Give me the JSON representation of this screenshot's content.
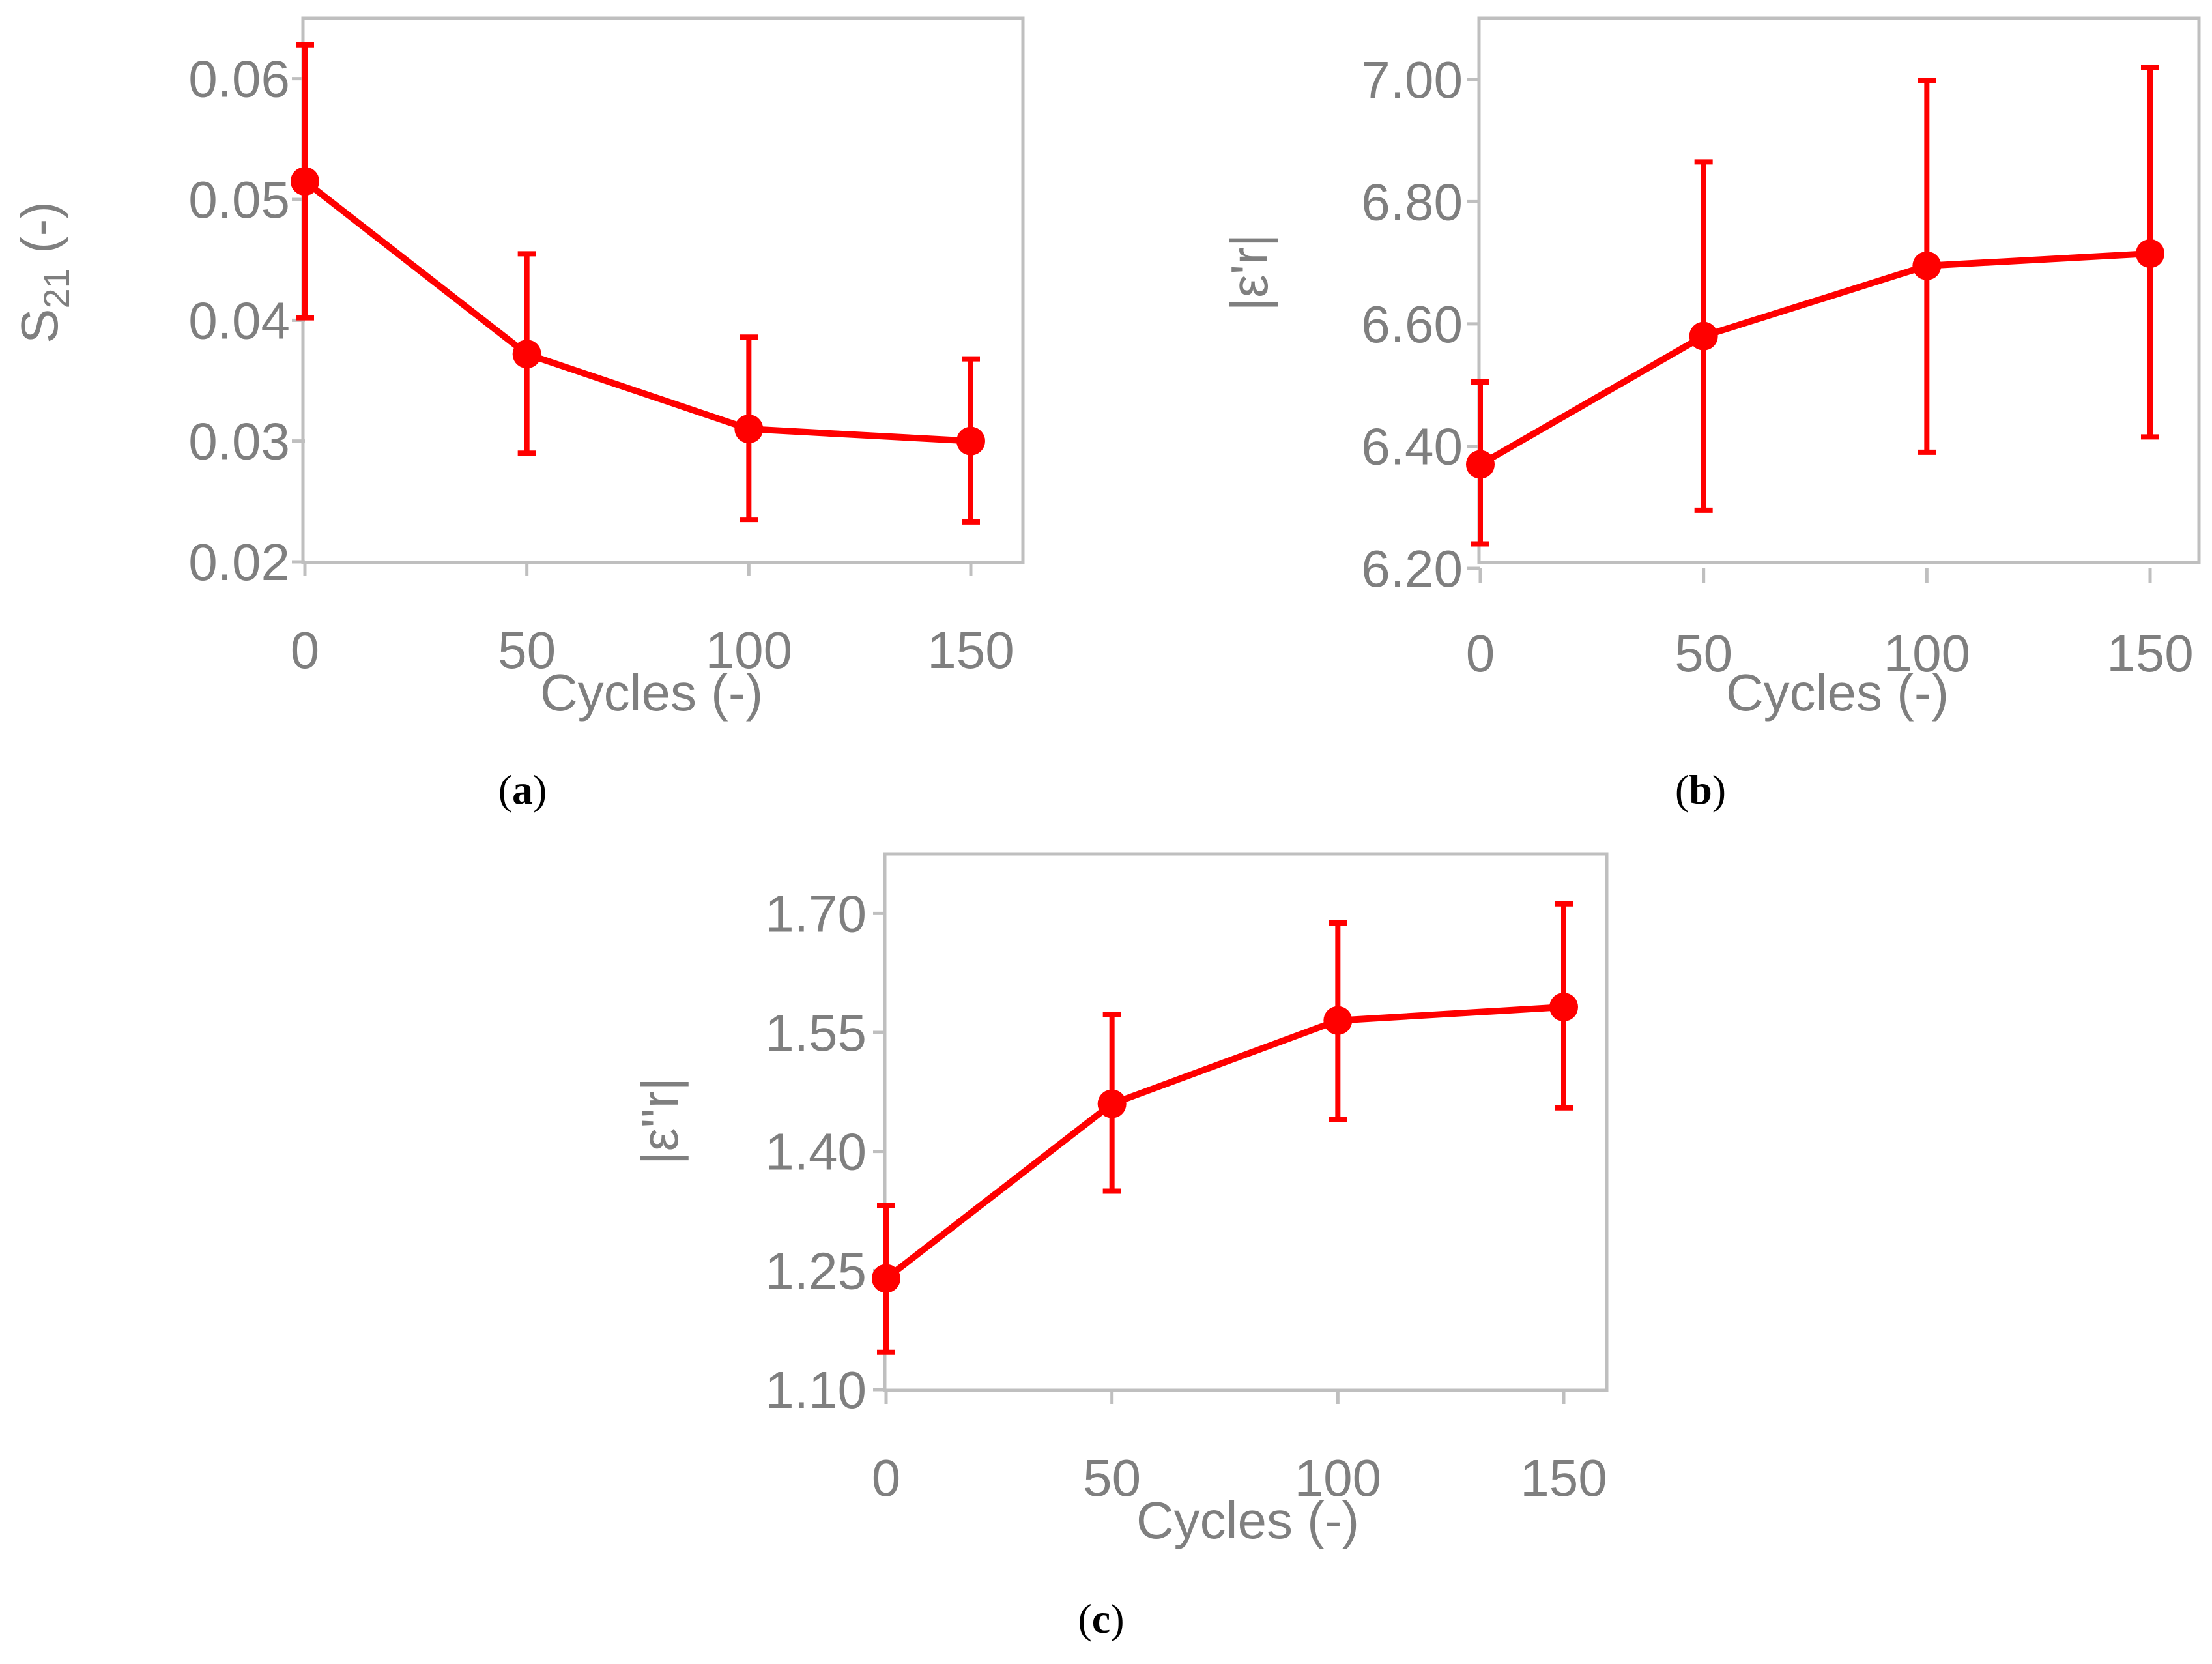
{
  "chart_data": [
    {
      "id": "a",
      "type": "line",
      "panel_label": "a",
      "xlabel": "Cycles (-)",
      "ylabel": "S",
      "ylabel_sub": "21",
      "ylabel_suffix": " (-)",
      "x": [
        0,
        50,
        100,
        150
      ],
      "xticks": [
        "0",
        "50",
        "100",
        "150"
      ],
      "ylim": [
        0.02,
        0.065
      ],
      "yticks": [
        "0.02",
        "0.03",
        "0.04",
        "0.05",
        "0.06"
      ],
      "ytick_values": [
        0.02,
        0.03,
        0.04,
        0.05,
        0.06
      ],
      "series": [
        {
          "name": "S21",
          "values": [
            0.0515,
            0.0372,
            0.031,
            0.03
          ],
          "err_low": [
            0.0402,
            0.029,
            0.0235,
            0.0233
          ],
          "err_high": [
            0.0628,
            0.0455,
            0.0386,
            0.0368
          ]
        }
      ],
      "color": "#ff0000"
    },
    {
      "id": "b",
      "type": "line",
      "panel_label": "b",
      "xlabel": "Cycles (-)",
      "ylabel": "|ε'r|",
      "ylabel_sub": "",
      "ylabel_suffix": "",
      "x": [
        0,
        50,
        100,
        150
      ],
      "xticks": [
        "0",
        "50",
        "100",
        "150"
      ],
      "ylim": [
        6.2,
        7.1
      ],
      "yticks": [
        "6.20",
        "6.40",
        "6.60",
        "6.80",
        "7.00"
      ],
      "ytick_values": [
        6.2,
        6.4,
        6.6,
        6.8,
        7.0
      ],
      "series": [
        {
          "name": "eps_real",
          "values": [
            6.37,
            6.58,
            6.695,
            6.715
          ],
          "err_low": [
            6.24,
            6.295,
            6.39,
            6.415
          ],
          "err_high": [
            6.505,
            6.865,
            6.998,
            7.02
          ]
        }
      ],
      "color": "#ff0000"
    },
    {
      "id": "c",
      "type": "line",
      "panel_label": "c",
      "xlabel": "Cycles (-)",
      "ylabel": "|ε''r|",
      "ylabel_sub": "",
      "ylabel_suffix": "",
      "x": [
        0,
        50,
        100,
        150
      ],
      "xticks": [
        "0",
        "50",
        "100",
        "150"
      ],
      "ylim": [
        1.1,
        1.775
      ],
      "yticks": [
        "1.10",
        "1.25",
        "1.40",
        "1.55",
        "1.70"
      ],
      "ytick_values": [
        1.1,
        1.25,
        1.4,
        1.55,
        1.7
      ],
      "series": [
        {
          "name": "eps_imag",
          "values": [
            1.24,
            1.46,
            1.565,
            1.582
          ],
          "err_low": [
            1.147,
            1.35,
            1.44,
            1.455
          ],
          "err_high": [
            1.332,
            1.573,
            1.688,
            1.712
          ]
        }
      ],
      "color": "#ff0000"
    }
  ]
}
